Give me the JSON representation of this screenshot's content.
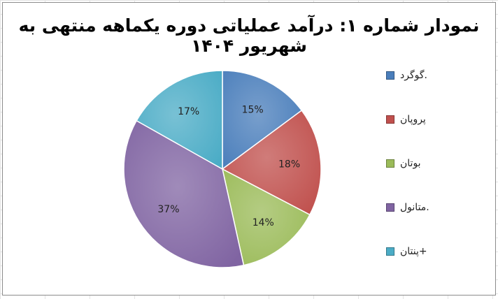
{
  "chart_data": {
    "type": "pie",
    "title": "نمودار شماره ۱: درآمد عملیاتی دوره یکماهه منتهی به شهریور ۱۴۰۴",
    "categories": [
      "گوگرد.",
      "پروپان",
      "بوتان",
      "متانول.",
      "پنتان+"
    ],
    "values": [
      15,
      18,
      14,
      37,
      17
    ],
    "labels": [
      "15%",
      "18%",
      "14%",
      "37%",
      "17%"
    ],
    "colors": [
      "#4a7ebb",
      "#c0504d",
      "#9bbb59",
      "#8064a2",
      "#4bacc6"
    ],
    "legend": "right",
    "start_angle": "12 o'clock",
    "direction": "clockwise"
  }
}
